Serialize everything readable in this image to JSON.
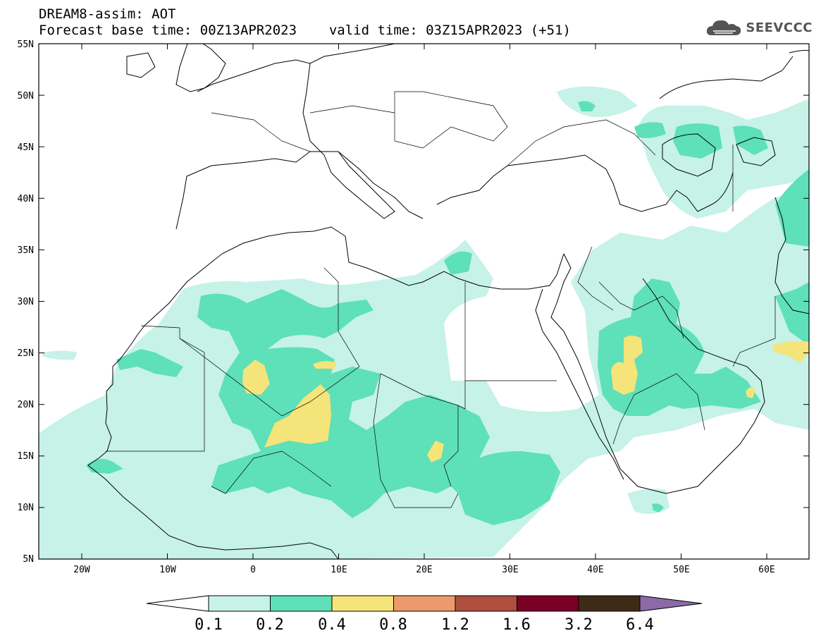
{
  "title": {
    "line1": "DREAM8-assim: AOT",
    "base_label": "Forecast base time: 00Z13APR2023",
    "valid_label": "valid time: 03Z15APR2023 (+51)"
  },
  "logo": {
    "text": "SEEVCCC"
  },
  "axes": {
    "lat_ticks": [
      "55N",
      "50N",
      "45N",
      "40N",
      "35N",
      "30N",
      "25N",
      "20N",
      "15N",
      "10N",
      "5N"
    ],
    "lon_ticks": [
      "20W",
      "10W",
      "0",
      "10E",
      "20E",
      "30E",
      "40E",
      "50E",
      "60E"
    ]
  },
  "colorbar": {
    "labels": [
      "0.1",
      "0.2",
      "0.4",
      "0.8",
      "1.2",
      "1.6",
      "3.2",
      "6.4"
    ],
    "colors": [
      "#c6f2e8",
      "#5ee0b8",
      "#f5e47a",
      "#ea9a6c",
      "#ad4e3e",
      "#7a0026",
      "#3e2a16",
      "#8c6aa8"
    ],
    "under_color": "#ffffff"
  }
}
